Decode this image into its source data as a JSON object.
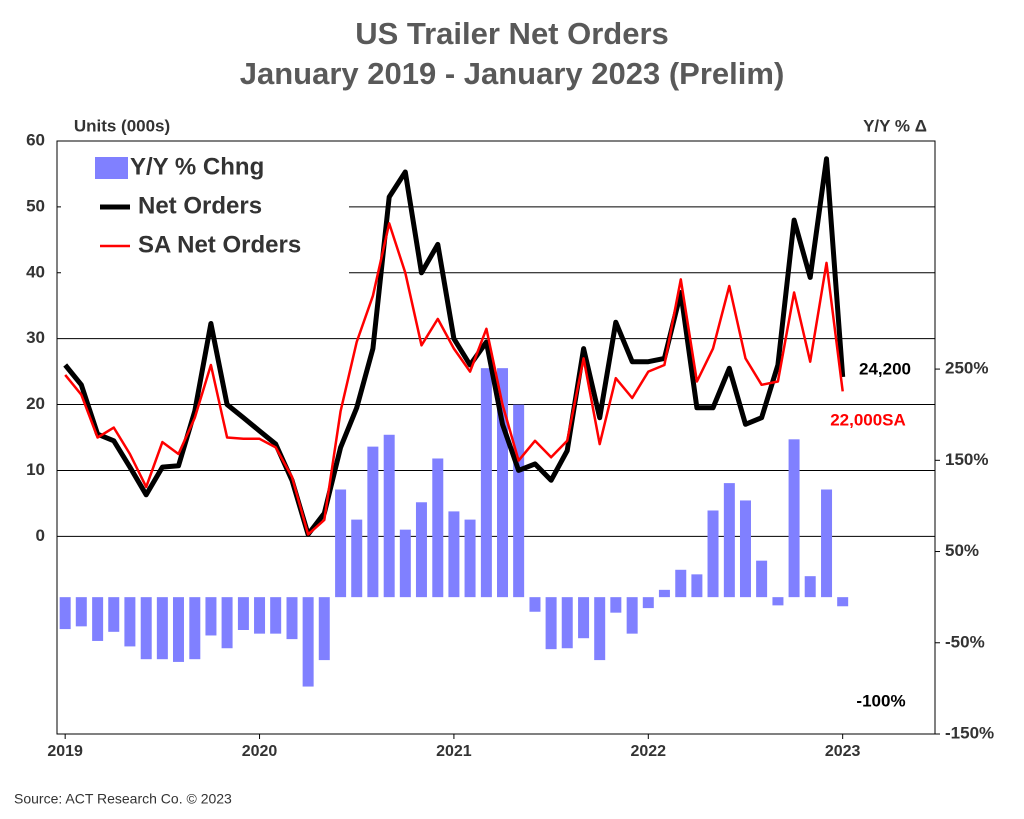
{
  "chart_data": {
    "type": "line",
    "title": "US Trailer Net Orders",
    "subtitle": "January 2019 - January 2023 (Prelim)",
    "y_label": "Units (000s)",
    "y2_label": "Y/Y % Δ",
    "source": "Source: ACT Research Co. © 2023",
    "annotations": [
      "24,200",
      "22,000SA",
      "-100%"
    ],
    "x": [
      2019,
      2019.083,
      2019.167,
      2019.25,
      2019.333,
      2019.417,
      2019.5,
      2019.583,
      2019.667,
      2019.75,
      2019.833,
      2019.917,
      2020,
      2020.083,
      2020.167,
      2020.25,
      2020.333,
      2020.417,
      2020.5,
      2020.583,
      2020.667,
      2020.75,
      2020.833,
      2020.917,
      2021,
      2021.083,
      2021.167,
      2021.25,
      2021.333,
      2021.417,
      2021.5,
      2021.583,
      2021.667,
      2021.75,
      2021.833,
      2021.917,
      2022,
      2022.083,
      2022.167,
      2022.25,
      2022.333,
      2022.417,
      2022.5,
      2022.583,
      2022.667,
      2022.75,
      2022.833,
      2022.917,
      2023
    ],
    "xlim": [
      2018.958,
      2023.475
    ],
    "xticks": [
      2019,
      2020,
      2021,
      2022,
      2023
    ],
    "ylim": [
      -30,
      60
    ],
    "yticks": [
      0,
      10,
      20,
      30,
      40,
      50,
      60
    ],
    "y2lim": [
      -150,
      500
    ],
    "y2ticks": [
      {
        "value": -150,
        "label": "-150%"
      },
      {
        "value": -50,
        "label": "-50%"
      },
      {
        "value": 50,
        "label": "50%"
      },
      {
        "value": 150,
        "label": "150%"
      },
      {
        "value": 250,
        "label": "250%"
      }
    ],
    "grid": true,
    "legend": "upper left",
    "series": [
      {
        "name": "Y/Y % Chng",
        "type": "bar",
        "axis": "y2",
        "color": "#8080ff",
        "values": [
          -35,
          -32,
          -48,
          -38,
          -54,
          -68,
          -68,
          -71,
          -68,
          -42,
          -56,
          -36,
          -40,
          -40,
          -46,
          -98,
          -69,
          118,
          85,
          165,
          178,
          74,
          104,
          152,
          94,
          85,
          251,
          251,
          211,
          -16,
          -57,
          -56,
          -45,
          -69,
          -17,
          -40,
          -12,
          8,
          30,
          25,
          95,
          125,
          106,
          40,
          -9,
          173,
          23,
          118,
          -10
        ]
      },
      {
        "name": "Net Orders",
        "color": "#000000",
        "values": [
          26,
          23,
          15.5,
          14.5,
          10.5,
          6.3,
          10.5,
          10.7,
          19,
          32.3,
          20,
          18,
          16,
          14,
          8.5,
          0.3,
          3.5,
          13.5,
          19.5,
          28.5,
          51.5,
          55.3,
          40,
          44.3,
          30,
          26,
          29.5,
          17,
          10,
          11,
          8.5,
          13,
          28.5,
          18,
          32.5,
          26.5,
          26.5,
          27,
          37,
          19.5,
          19.5,
          25.5,
          17,
          18,
          26,
          48,
          39.3,
          57.3,
          24.2
        ]
      },
      {
        "name": "SA Net Orders",
        "color": "#ff0000",
        "values": [
          24.5,
          21.5,
          15,
          16.5,
          12.5,
          7.5,
          14.3,
          12.5,
          18,
          26,
          15,
          14.8,
          14.8,
          13.5,
          9,
          0.3,
          2.5,
          19,
          29.5,
          36.5,
          47.5,
          40,
          29,
          33,
          28.5,
          25,
          31.5,
          20,
          11.5,
          14.5,
          12,
          14.5,
          27,
          14,
          24,
          21,
          25,
          26,
          39,
          23.5,
          28.5,
          38,
          27,
          23,
          23.5,
          37,
          26.5,
          41.5,
          22
        ]
      }
    ]
  }
}
